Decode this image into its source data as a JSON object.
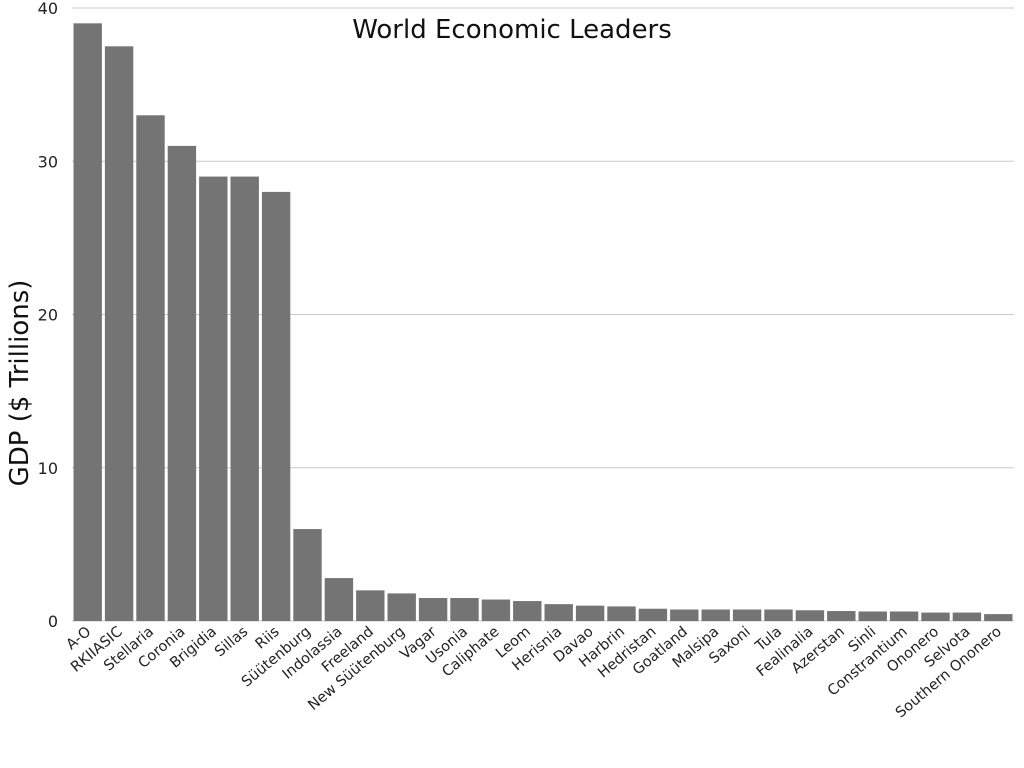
{
  "chart_data": {
    "type": "bar",
    "title": "World Economic Leaders",
    "xlabel": "",
    "ylabel": "GDP ($ Trillions)",
    "ylim": [
      0,
      40
    ],
    "yticks": [
      "0",
      "10",
      "20",
      "30",
      "40"
    ],
    "grid": true,
    "color": "#747474",
    "categories": [
      "A-O",
      "RKIIASIC",
      "Stellaria",
      "Coronia",
      "Brigidia",
      "Sillas",
      "Riis",
      "Süütenburg",
      "Indolassia",
      "Freeland",
      "New Süütenburg",
      "Vagar",
      "Usonia",
      "Caliphate",
      "Leom",
      "Herisnia",
      "Davao",
      "Harbrin",
      "Hedristan",
      "Goatland",
      "Malsipa",
      "Saxoni",
      "Tula",
      "Fealinalia",
      "Azerstan",
      "Sinli",
      "Constrantium",
      "Ononero",
      "Selvota",
      "Southern Ononero"
    ],
    "values": [
      39,
      37.5,
      33,
      31,
      29,
      29,
      28,
      6,
      2.8,
      2.0,
      1.8,
      1.5,
      1.5,
      1.4,
      1.3,
      1.1,
      1.0,
      0.95,
      0.8,
      0.75,
      0.75,
      0.75,
      0.75,
      0.7,
      0.65,
      0.62,
      0.62,
      0.55,
      0.55,
      0.45
    ]
  }
}
